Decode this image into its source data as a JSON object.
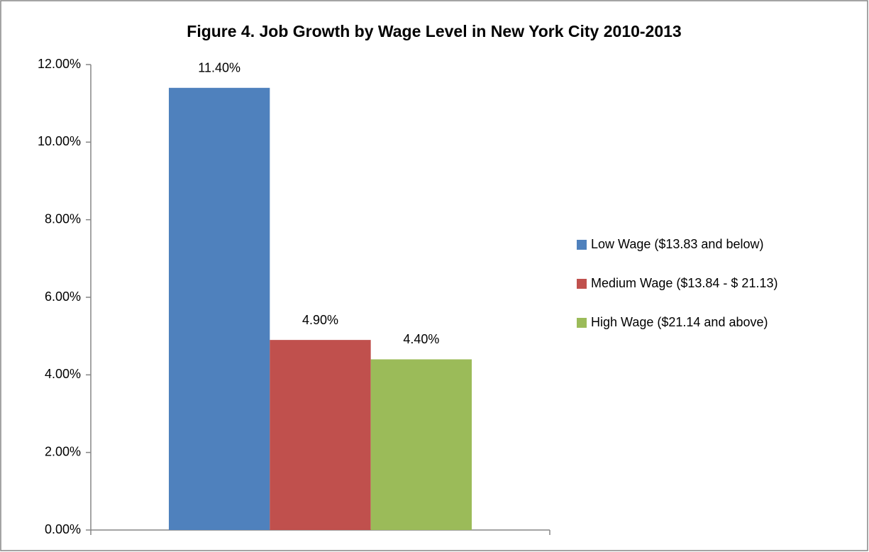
{
  "chart_data": {
    "type": "bar",
    "title": "Figure 4. Job Growth by Wage Level in New York City 2010-2013",
    "categories": [
      null
    ],
    "series": [
      {
        "name": "Low Wage ($13.83 and below)",
        "color": "#4f81bd",
        "values": [
          11.4
        ],
        "value_labels": [
          "11.40%"
        ]
      },
      {
        "name": "Medium Wage ($13.84 - $ 21.13)",
        "color": "#c0504d",
        "values": [
          4.9
        ],
        "value_labels": [
          "4.90%"
        ]
      },
      {
        "name": "High Wage ($21.14 and above)",
        "color": "#9bbb59",
        "values": [
          4.4
        ],
        "value_labels": [
          "4.40%"
        ]
      }
    ],
    "ylim": [
      0,
      12
    ],
    "yticks": [
      {
        "value": 0,
        "label": "0.00%"
      },
      {
        "value": 2,
        "label": "2.00%"
      },
      {
        "value": 4,
        "label": "4.00%"
      },
      {
        "value": 6,
        "label": "6.00%"
      },
      {
        "value": 8,
        "label": "8.00%"
      },
      {
        "value": 10,
        "label": "10.00%"
      },
      {
        "value": 12,
        "label": "12.00%"
      }
    ],
    "grid": false,
    "legend": "right"
  }
}
